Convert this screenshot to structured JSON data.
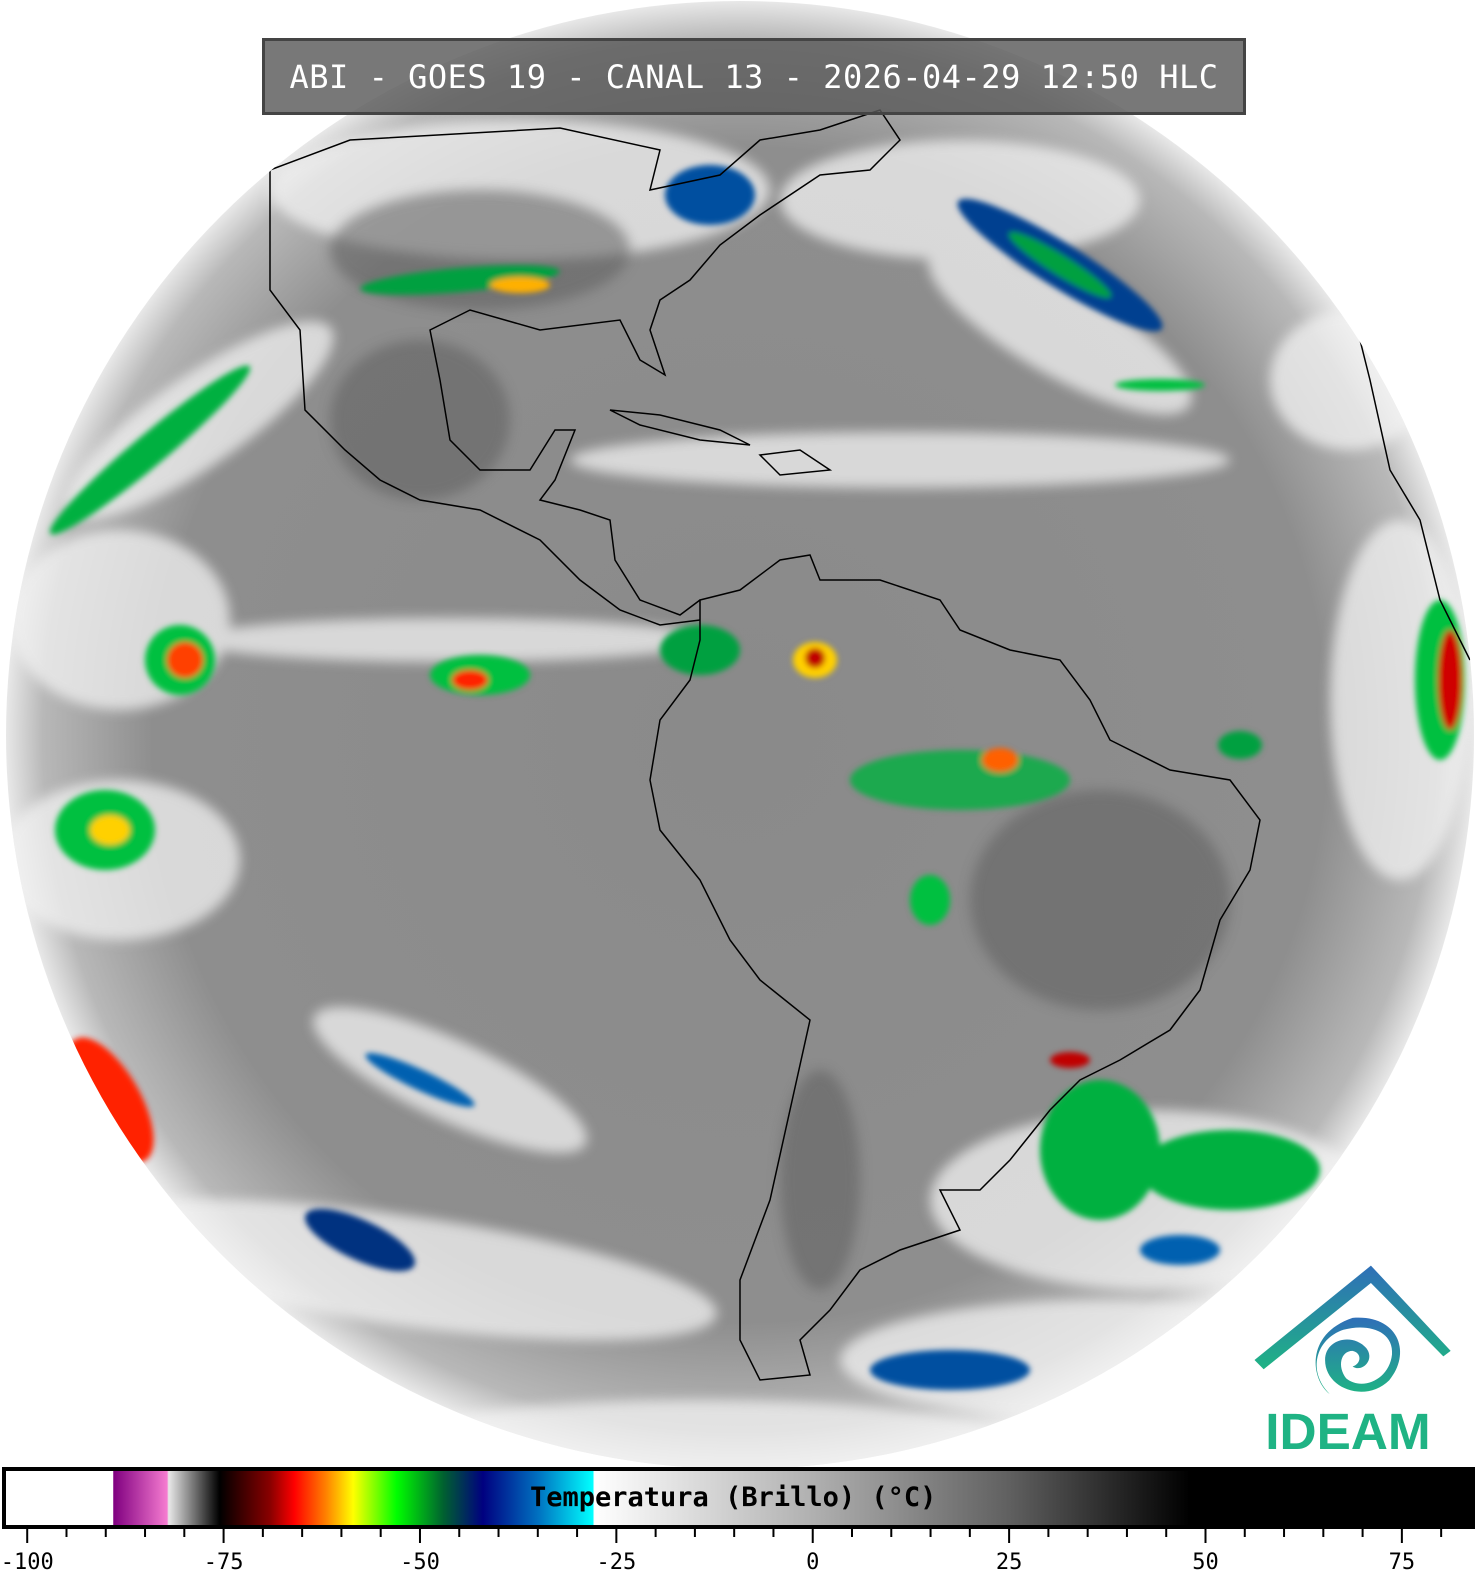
{
  "title": "ABI - GOES 19 - CANAL 13 - 2026-04-29 12:50 HLC",
  "logo": {
    "text": "IDEAM",
    "color_primary": "#1fb384",
    "color_top": "#2f6fb8"
  },
  "colorbar": {
    "label": "Temperatura (Brillo) (°C)",
    "range": [
      -102.7,
      83.8
    ],
    "ticks_major": [
      -100,
      -75,
      -50,
      -25,
      0,
      25,
      50,
      75
    ],
    "tick_labels": [
      "-100",
      "-75",
      "-50",
      "-25",
      "0",
      "25",
      "50",
      "75"
    ],
    "minor_step": 5,
    "stops": [
      {
        "t": -102.7,
        "c": "#ffffff"
      },
      {
        "t": -89.1,
        "c": "#ffffff"
      },
      {
        "t": -89.0,
        "c": "#800080"
      },
      {
        "t": -82.2,
        "c": "#f57bd0"
      },
      {
        "t": -82.0,
        "c": "#e8e8e8"
      },
      {
        "t": -76.5,
        "c": "#222222"
      },
      {
        "t": -75.5,
        "c": "#000000"
      },
      {
        "t": -69,
        "c": "#8b0000"
      },
      {
        "t": -66,
        "c": "#ff0000"
      },
      {
        "t": -62,
        "c": "#ff8000"
      },
      {
        "t": -58.5,
        "c": "#ffff00"
      },
      {
        "t": -53,
        "c": "#00ff00"
      },
      {
        "t": -47,
        "c": "#006030"
      },
      {
        "t": -42,
        "c": "#000080"
      },
      {
        "t": -35,
        "c": "#0070c0"
      },
      {
        "t": -28.0,
        "c": "#00ffff"
      },
      {
        "t": -27.8,
        "c": "#ffffff"
      },
      {
        "t": 0,
        "c": "#b0b0b0"
      },
      {
        "t": 25,
        "c": "#606060"
      },
      {
        "t": 48,
        "c": "#000000"
      },
      {
        "t": 83.8,
        "c": "#000000"
      }
    ]
  }
}
